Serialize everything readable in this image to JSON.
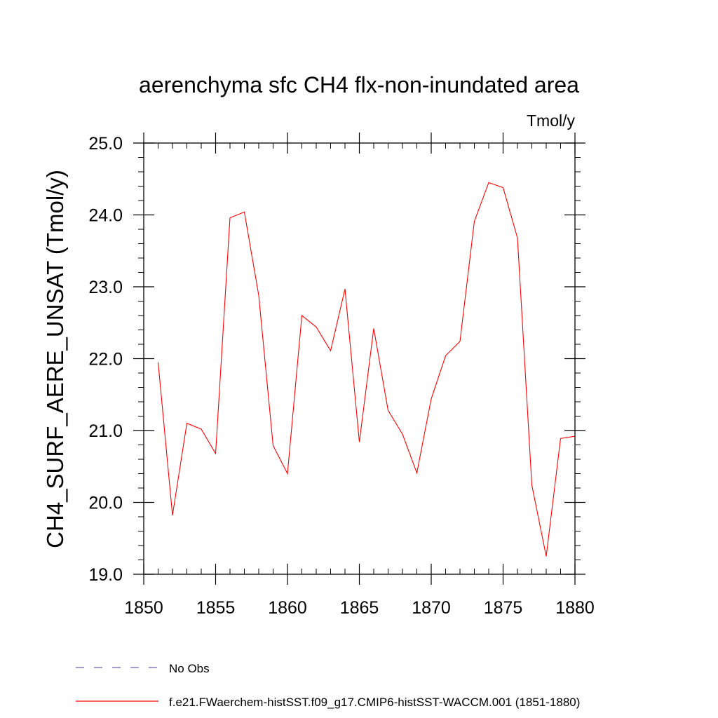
{
  "chart_data": {
    "type": "line",
    "title": "aerenchyma sfc CH4 flx-non-inundated area",
    "units_label": "Tmol/y",
    "xlabel": "",
    "ylabel": "CH4_SURF_AERE_UNSAT  (Tmol/y)",
    "xlim": [
      1850,
      1880
    ],
    "ylim": [
      19.0,
      25.0
    ],
    "x_ticks": [
      1850,
      1855,
      1860,
      1865,
      1870,
      1875,
      1880
    ],
    "x_tick_labels": [
      "1850",
      "1855",
      "1860",
      "1865",
      "1870",
      "1875",
      "1880"
    ],
    "x_minor_step": 1,
    "y_ticks": [
      19.0,
      20.0,
      21.0,
      22.0,
      23.0,
      24.0,
      25.0
    ],
    "y_tick_labels": [
      "19.0",
      "20.0",
      "21.0",
      "22.0",
      "23.0",
      "24.0",
      "25.0"
    ],
    "y_minor_step": 0.2,
    "grid": false,
    "series": [
      {
        "name": "f.e21.FWaerchem-histSST.f09_g17.CMIP6-histSST-WACCM.001 (1851-1880)",
        "color": "#ff0000",
        "x": [
          1851,
          1852,
          1853,
          1854,
          1855,
          1856,
          1857,
          1858,
          1859,
          1860,
          1861,
          1862,
          1863,
          1864,
          1865,
          1866,
          1867,
          1868,
          1869,
          1870,
          1871,
          1872,
          1873,
          1874,
          1875,
          1876,
          1877,
          1878,
          1879,
          1880
        ],
        "values": [
          21.95,
          19.82,
          21.1,
          21.02,
          20.68,
          23.96,
          24.04,
          22.88,
          20.79,
          20.4,
          22.6,
          22.44,
          22.11,
          22.97,
          20.84,
          22.42,
          21.28,
          20.95,
          20.41,
          21.44,
          22.04,
          22.24,
          23.91,
          24.45,
          24.38,
          23.68,
          20.24,
          19.25,
          20.89,
          20.92
        ]
      }
    ],
    "legend": {
      "placement": "bottom-left",
      "entries": [
        {
          "label": "No Obs",
          "color": "#6666bb",
          "style": "dashed"
        },
        {
          "label": "f.e21.FWaerchem-histSST.f09_g17.CMIP6-histSST-WACCM.001 (1851-1880)",
          "color": "#ff0000",
          "style": "solid"
        }
      ]
    }
  }
}
